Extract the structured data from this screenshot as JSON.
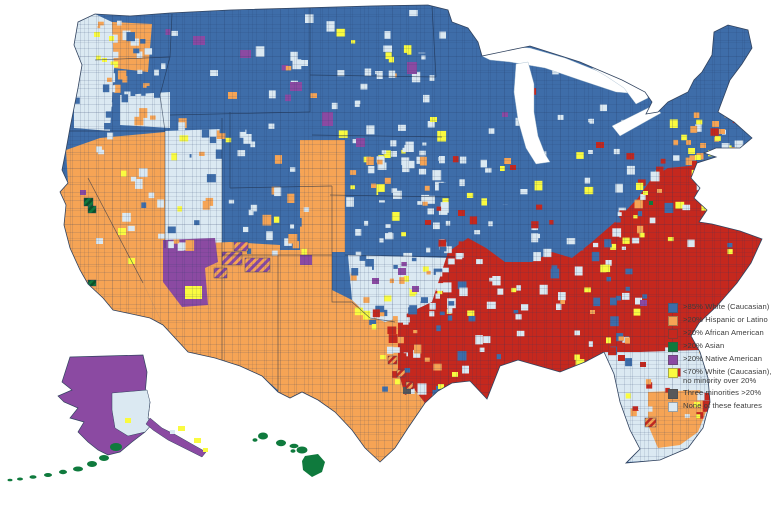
{
  "page": {
    "background": "#ffffff"
  },
  "map": {
    "kind": "US county-level demographic choropleth",
    "insets_visible": [
      "Alaska",
      "Hawaii"
    ]
  },
  "legend": {
    "items": [
      {
        "key": "white",
        "label": ">85% White (Caucasian)",
        "color": "#3E6DA9"
      },
      {
        "key": "hispanic",
        "label": ">20% Hispanic or Latino",
        "color": "#F6A455"
      },
      {
        "key": "african_american",
        "label": ">20% African American",
        "color": "#C5281E"
      },
      {
        "key": "asian",
        "label": ">20% Asian",
        "color": "#0F7A3D"
      },
      {
        "key": "native_american",
        "label": ">20% Native American",
        "color": "#8B4AA2"
      },
      {
        "key": "low_white",
        "label": "<70% White (Caucasian), no minority over 20%",
        "color": "#FAFB40"
      },
      {
        "key": "three_minorities",
        "label": "Three minorities >20%",
        "color": "#58585A"
      },
      {
        "key": "none",
        "label": "None of these features",
        "color": "#DBE9F2"
      }
    ]
  }
}
